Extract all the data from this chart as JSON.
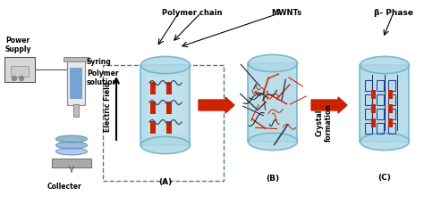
{
  "bg_color": "#ffffff",
  "labels": {
    "power_supply": "Power\nSupply",
    "syring": "Syring",
    "polymer_solution": "Polymer\nsolution",
    "collecter": "Collecter",
    "polymer_chain": "Polymer chain",
    "mwnts": "MWNTs",
    "beta_phase": "β- Phase",
    "electric_field": "Electric Field",
    "crystal_formation": "Crystal\nformation",
    "A": "(A)",
    "B": "(B)",
    "C": "(C)"
  },
  "colors": {
    "cylinder_fill": "#add8e6",
    "cylinder_stroke": "#87ceeb",
    "red_bar": "#cc2200",
    "dark_line": "#222222",
    "arrow_red": "#cc2200",
    "dashed_box": "#5577aa",
    "syringe_blue": "#4488cc",
    "collector_blue": "#5599dd",
    "label_color": "#000000"
  }
}
